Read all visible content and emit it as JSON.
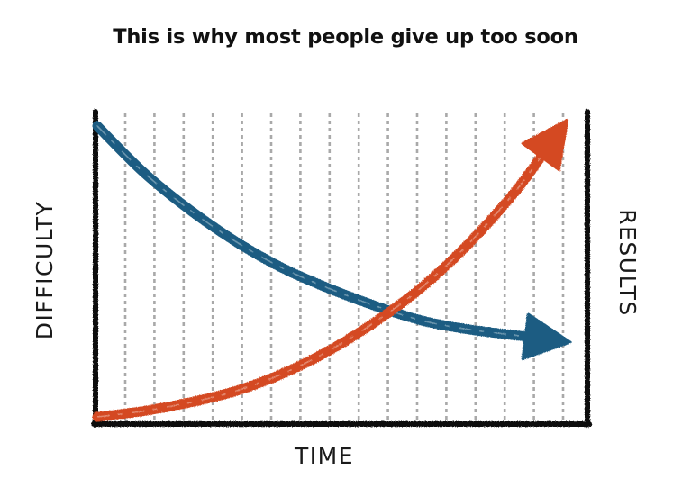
{
  "title": "This is why most people give up too soon",
  "chart_data": {
    "type": "line",
    "title": "This is why most people give up too soon",
    "xlabel": "TIME",
    "ylabel_left": "DIFFICULTY",
    "ylabel_right": "RESULTS",
    "grid": "vertical dashed lines",
    "series": [
      {
        "name": "DIFFICULTY",
        "color": "#1b5c82",
        "x": [
          0,
          0.1,
          0.2,
          0.3,
          0.4,
          0.5,
          0.6,
          0.7,
          0.8,
          0.9,
          1.0
        ],
        "values": [
          1.0,
          0.84,
          0.71,
          0.6,
          0.51,
          0.44,
          0.38,
          0.33,
          0.3,
          0.28,
          0.26
        ]
      },
      {
        "name": "RESULTS",
        "color": "#d44a22",
        "x": [
          0,
          0.1,
          0.2,
          0.3,
          0.4,
          0.5,
          0.6,
          0.7,
          0.8,
          0.9,
          1.0
        ],
        "values": [
          0.0,
          0.02,
          0.05,
          0.09,
          0.15,
          0.23,
          0.33,
          0.45,
          0.6,
          0.78,
          1.0
        ]
      }
    ]
  }
}
